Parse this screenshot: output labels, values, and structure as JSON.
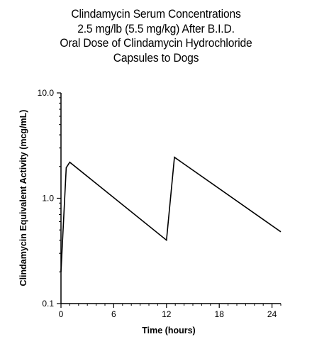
{
  "title_lines": [
    "Clindamycin Serum Concentrations",
    "2.5 mg/lb (5.5 mg/kg) After B.I.D.",
    "Oral Dose of Clindamycin Hydrochloride",
    "Capsules to Dogs"
  ],
  "chart_data": {
    "type": "line",
    "title": "Clindamycin Serum Concentrations 2.5 mg/lb (5.5 mg/kg) After B.I.D. Oral Dose of Clindamycin Hydrochloride Capsules to Dogs",
    "xlabel": "Time (hours)",
    "ylabel": "Clindamycin Equivalent Activity (mcg/mL)",
    "xlim": [
      0,
      25
    ],
    "ylim": [
      0.1,
      10.0
    ],
    "yscale": "log",
    "x_ticks": [
      0,
      6,
      12,
      18,
      24
    ],
    "x_tick_labels": [
      "0",
      "6",
      "12",
      "18",
      "24"
    ],
    "y_ticks": [
      0.1,
      1.0,
      10.0
    ],
    "y_tick_labels": [
      "0.1",
      "1.0",
      "10.0"
    ],
    "grid": false,
    "series": [
      {
        "x": [
          0,
          0.6,
          1.0,
          12.0,
          12.9,
          25.0
        ],
        "y": [
          0.2,
          1.95,
          2.2,
          0.4,
          2.45,
          0.48
        ]
      }
    ]
  }
}
